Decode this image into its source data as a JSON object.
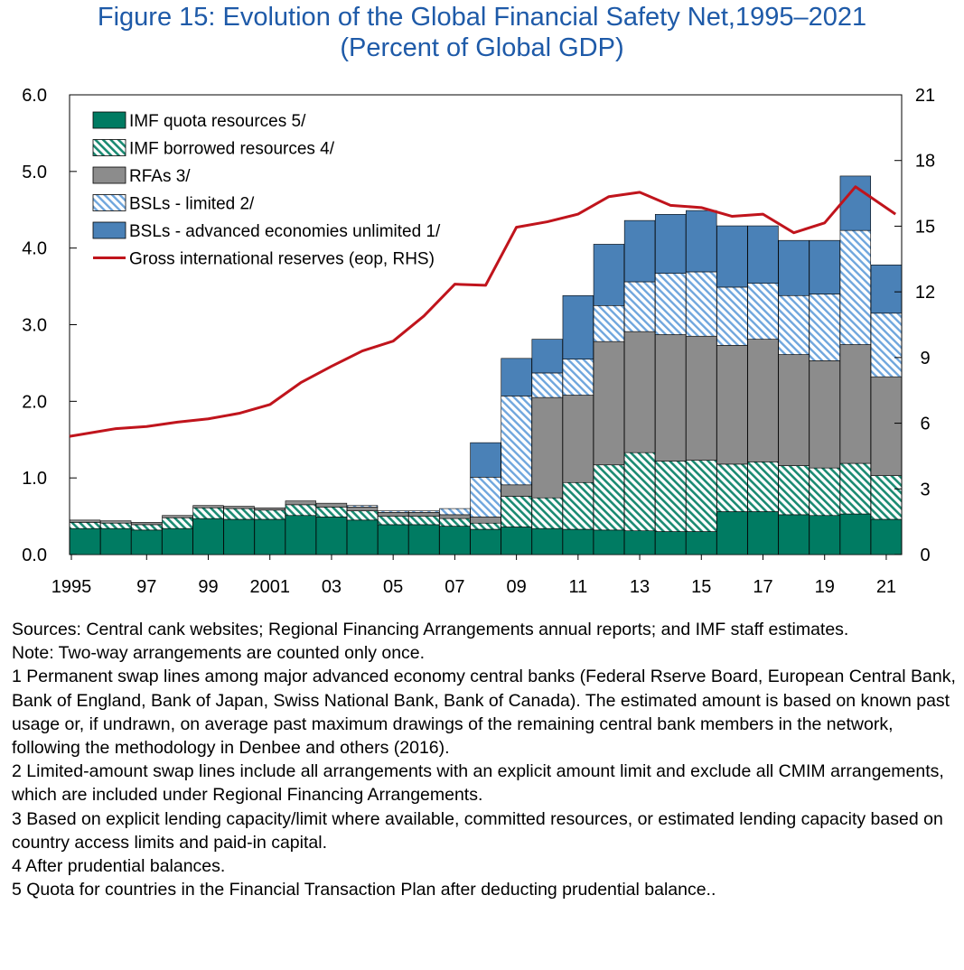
{
  "title": {
    "line1": "Figure 15:  Evolution of the Global Financial Safety Net,1995–2021",
    "line2": "(Percent of Global GDP)"
  },
  "colors": {
    "title": "#1e5aa8",
    "imf_quota": "#007b62",
    "imf_borrowed": "#1a8a72",
    "rfa": "#8c8c8c",
    "bsl_limited": "#6fa6dd",
    "bsl_unlimited": "#4a81b7",
    "reserves_line": "#c0141c"
  },
  "chart_data": {
    "type": "bar",
    "stacked": true,
    "categories": [
      "1995",
      "1996",
      "1997",
      "1998",
      "1999",
      "2000",
      "2001",
      "2002",
      "2003",
      "2004",
      "2005",
      "2006",
      "2007",
      "2008",
      "2009",
      "2010",
      "2011",
      "2012",
      "2013",
      "2014",
      "2015",
      "2016",
      "2017",
      "2018",
      "2019",
      "2020",
      "2021"
    ],
    "x_tick_labels": [
      "1995",
      "97",
      "99",
      "2001",
      "03",
      "05",
      "07",
      "09",
      "11",
      "13",
      "15",
      "17",
      "19",
      "21"
    ],
    "y_left": {
      "ylim": [
        0,
        6.0
      ],
      "ticks": [
        "0.0",
        "1.0",
        "2.0",
        "3.0",
        "4.0",
        "5.0",
        "6.0"
      ]
    },
    "y_right": {
      "ylim": [
        0,
        21
      ],
      "ticks": [
        "0",
        "3",
        "6",
        "9",
        "12",
        "15",
        "18",
        "21"
      ]
    },
    "series": [
      {
        "name": "IMF quota resources 5/",
        "key": "imf_quota",
        "axis": "left",
        "values": [
          0.34,
          0.34,
          0.32,
          0.34,
          0.47,
          0.46,
          0.46,
          0.51,
          0.49,
          0.45,
          0.39,
          0.39,
          0.37,
          0.33,
          0.36,
          0.34,
          0.33,
          0.32,
          0.31,
          0.3,
          0.3,
          0.56,
          0.56,
          0.52,
          0.51,
          0.53,
          0.46
        ]
      },
      {
        "name": "IMF borrowed resources 4/",
        "key": "imf_borrowed",
        "axis": "left",
        "values": [
          0.08,
          0.07,
          0.07,
          0.14,
          0.14,
          0.14,
          0.12,
          0.14,
          0.13,
          0.12,
          0.11,
          0.11,
          0.1,
          0.08,
          0.4,
          0.4,
          0.61,
          0.85,
          1.02,
          0.92,
          0.93,
          0.62,
          0.65,
          0.64,
          0.62,
          0.66,
          0.57
        ]
      },
      {
        "name": "RFAs 3/",
        "key": "rfa",
        "axis": "left",
        "values": [
          0.03,
          0.03,
          0.03,
          0.03,
          0.03,
          0.03,
          0.03,
          0.05,
          0.05,
          0.05,
          0.05,
          0.05,
          0.05,
          0.08,
          0.15,
          1.31,
          1.14,
          1.61,
          1.58,
          1.65,
          1.62,
          1.55,
          1.6,
          1.45,
          1.4,
          1.55,
          1.29
        ]
      },
      {
        "name": "BSLs - limited 2/",
        "key": "bsl_limited",
        "axis": "left",
        "values": [
          0.0,
          0.0,
          0.0,
          0.0,
          0.0,
          0.0,
          0.0,
          0.0,
          0.0,
          0.02,
          0.02,
          0.02,
          0.08,
          0.52,
          1.16,
          0.32,
          0.47,
          0.47,
          0.65,
          0.8,
          0.84,
          0.76,
          0.73,
          0.77,
          0.87,
          1.49,
          0.83
        ]
      },
      {
        "name": "BSLs - advanced economies unlimited 1/",
        "key": "bsl_unlimited",
        "axis": "left",
        "values": [
          0.0,
          0.0,
          0.0,
          0.0,
          0.0,
          0.0,
          0.0,
          0.0,
          0.0,
          0.0,
          0.0,
          0.0,
          0.0,
          0.45,
          0.49,
          0.44,
          0.83,
          0.8,
          0.8,
          0.77,
          0.8,
          0.8,
          0.75,
          0.72,
          0.7,
          0.71,
          0.63
        ]
      },
      {
        "name": "Gross international reserves (eop, RHS)",
        "key": "reserves_line",
        "axis": "right",
        "type": "line",
        "values": [
          5.4,
          5.75,
          5.85,
          6.05,
          6.2,
          6.45,
          6.85,
          7.85,
          8.6,
          9.3,
          9.75,
          10.9,
          12.35,
          12.3,
          14.95,
          15.2,
          15.55,
          16.35,
          16.55,
          15.95,
          15.85,
          15.45,
          15.55,
          14.7,
          15.15,
          16.8,
          15.55
        ]
      }
    ],
    "legend_position": "top-left",
    "grid": false
  },
  "notes": [
    "Sources: Central cank websites; Regional Financing Arrangements annual reports; and IMF staff estimates.",
    "Note: Two-way arrangements are counted only once.",
    "1 Permanent swap lines among major advanced economy central banks (Federal Rserve Board, European Central Bank, Bank of England, Bank of Japan, Swiss National Bank, Bank of Canada). The estimated amount is based on known past usage or, if undrawn, on average past maximum drawings of the remaining central bank members in the network, following the methodology in Denbee and others (2016).",
    "2 Limited-amount swap lines include all arrangements with an explicit amount limit and exclude all CMIM arrangements, which are included under Regional Financing Arrangements.",
    "3 Based on explicit lending capacity/limit where available, committed resources, or estimated lending capacity based on country access limits and paid-in capital.",
    "4 After prudential balances.",
    "5 Quota for countries in the Financial Transaction Plan after deducting prudential balance.."
  ]
}
